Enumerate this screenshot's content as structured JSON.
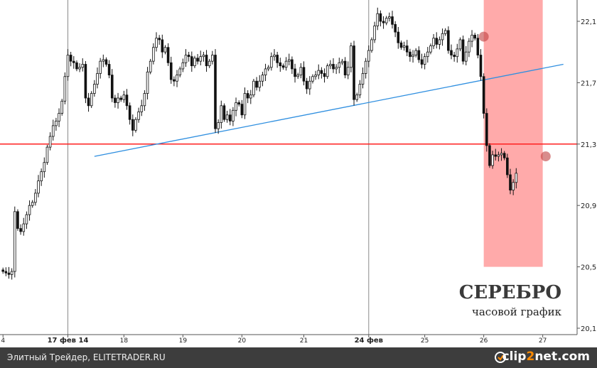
{
  "chart_data": {
    "type": "candlestick",
    "title": "СЕРЕБРО",
    "subtitle": "часовой график",
    "ylim": [
      20.08,
      22.2
    ],
    "y_ticks": [
      "22,1",
      "21,7",
      "21,3",
      "20,9",
      "20,5",
      "20,1"
    ],
    "y_tick_values": [
      22.1,
      21.7,
      21.3,
      20.9,
      20.5,
      20.1
    ],
    "x_ticks": [
      {
        "label": "4",
        "index": 0,
        "major": false
      },
      {
        "label": "17 фев 14",
        "index": 22,
        "major": true
      },
      {
        "label": "18",
        "index": 41,
        "major": false
      },
      {
        "label": "19",
        "index": 61,
        "major": false
      },
      {
        "label": "20",
        "index": 81,
        "major": false
      },
      {
        "label": "21",
        "index": 102,
        "major": false
      },
      {
        "label": "24 фев",
        "index": 124,
        "major": true
      },
      {
        "label": "25",
        "index": 143,
        "major": false
      },
      {
        "label": "26",
        "index": 163,
        "major": false
      },
      {
        "label": "27",
        "index": 183,
        "major": false
      }
    ],
    "grid": "vertical-major",
    "horizontal_level": 21.3,
    "trendline": {
      "from": {
        "index": 31,
        "value": 21.22
      },
      "to": {
        "index": 190,
        "value": 21.82
      }
    },
    "highlight": {
      "from_index": 163,
      "to_index": 183
    },
    "markers": [
      {
        "index": 163,
        "value": 22.0
      },
      {
        "index": 184,
        "value": 21.22
      }
    ],
    "close": [
      20.47,
      20.46,
      20.45,
      20.47,
      20.86,
      20.75,
      20.73,
      20.78,
      20.84,
      20.9,
      20.92,
      20.98,
      21.06,
      21.12,
      21.18,
      21.28,
      21.35,
      21.42,
      21.45,
      21.5,
      21.58,
      21.74,
      21.88,
      21.84,
      21.83,
      21.79,
      21.8,
      21.82,
      21.6,
      21.55,
      21.63,
      21.69,
      21.76,
      21.84,
      21.85,
      21.82,
      21.75,
      21.6,
      21.57,
      21.6,
      21.59,
      21.62,
      21.55,
      21.46,
      21.39,
      21.46,
      21.51,
      21.55,
      21.63,
      21.77,
      21.84,
      21.93,
      21.99,
      21.98,
      21.9,
      21.93,
      21.83,
      21.72,
      21.71,
      21.75,
      21.79,
      21.83,
      21.88,
      21.87,
      21.81,
      21.86,
      21.84,
      21.87,
      21.88,
      21.81,
      21.84,
      21.88,
      21.4,
      21.44,
      21.55,
      21.46,
      21.49,
      21.45,
      21.52,
      21.57,
      21.56,
      21.49,
      21.63,
      21.6,
      21.62,
      21.71,
      21.67,
      21.71,
      21.75,
      21.79,
      21.8,
      21.87,
      21.88,
      21.83,
      21.81,
      21.8,
      21.84,
      21.85,
      21.79,
      21.74,
      21.75,
      21.8,
      21.71,
      21.66,
      21.71,
      21.74,
      21.75,
      21.78,
      21.76,
      21.74,
      21.81,
      21.82,
      21.79,
      21.8,
      21.83,
      21.84,
      21.75,
      21.8,
      21.94,
      21.59,
      21.62,
      21.69,
      21.76,
      21.84,
      21.91,
      21.98,
      22.07,
      22.15,
      22.1,
      22.09,
      22.12,
      22.13,
      22.08,
      22.03,
      21.96,
      21.93,
      21.94,
      21.9,
      21.87,
      21.88,
      21.91,
      21.85,
      21.82,
      21.87,
      21.9,
      21.94,
      21.99,
      21.95,
      21.98,
      22.02,
      22.04,
      21.91,
      21.88,
      21.87,
      21.92,
      21.98,
      21.84,
      21.9,
      21.97,
      22.01,
      21.99,
      21.88,
      21.74,
      21.5,
      21.29,
      21.16,
      21.23,
      21.22,
      21.23,
      21.24,
      21.21,
      21.1,
      21.0,
      21.05,
      21.11
    ]
  },
  "footer": {
    "source": "Элитный Трейдер, ELITETRADER.RU",
    "logo_main": "clip",
    "logo_accent": "2",
    "logo_tail": "net.com"
  }
}
